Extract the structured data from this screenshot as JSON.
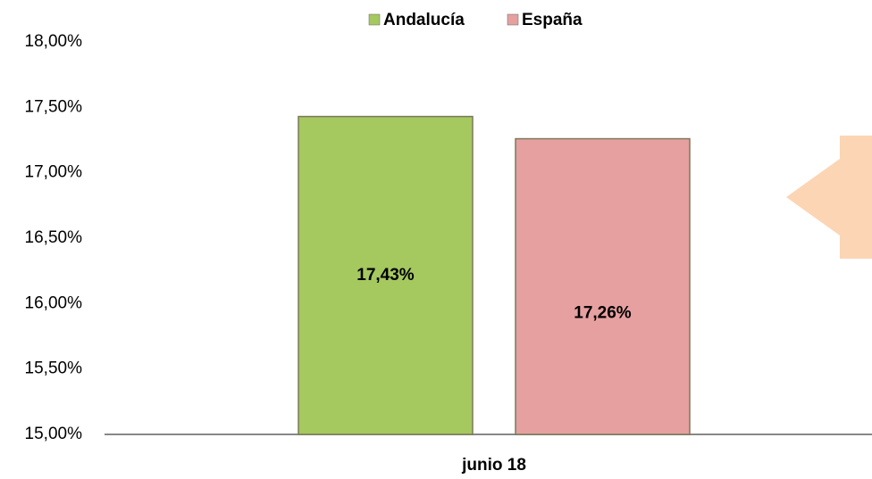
{
  "chart_data": {
    "type": "bar",
    "categories": [
      "junio 18"
    ],
    "series": [
      {
        "name": "Andalucía",
        "color": "#a5c85f",
        "values": [
          17.43
        ],
        "value_labels": [
          "17,43%"
        ]
      },
      {
        "name": "España",
        "color": "#e6a0a0",
        "values": [
          17.26
        ],
        "value_labels": [
          "17,26%"
        ]
      }
    ],
    "ylim": [
      15,
      18
    ],
    "yticks": [
      {
        "value": 15,
        "label": "15,00%"
      },
      {
        "value": 15.5,
        "label": "15,50%"
      },
      {
        "value": 16,
        "label": "16,00%"
      },
      {
        "value": 16.5,
        "label": "16,50%"
      },
      {
        "value": 17,
        "label": "17,00%"
      },
      {
        "value": 17.5,
        "label": "17,50%"
      },
      {
        "value": 18,
        "label": "18,00%"
      }
    ],
    "grid": false,
    "legend": "top"
  }
}
